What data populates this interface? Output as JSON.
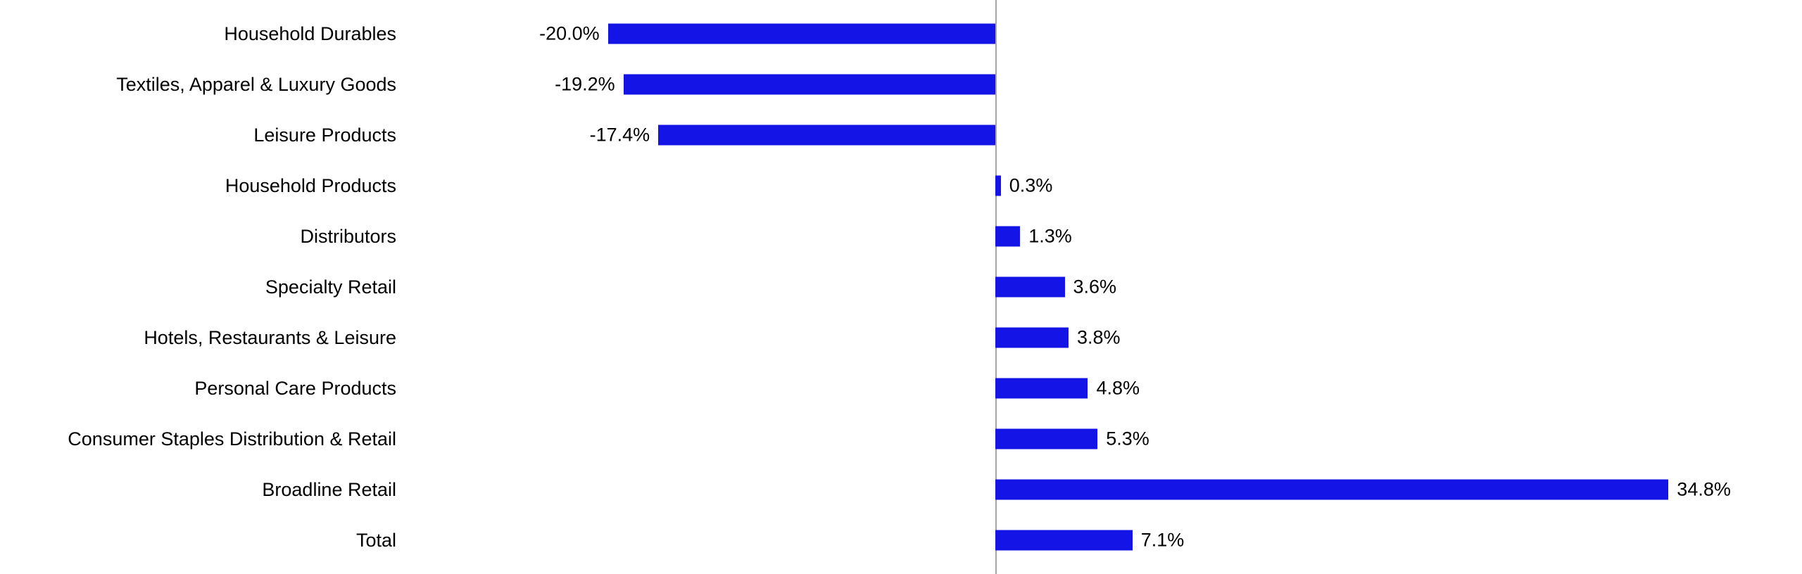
{
  "chart_data": {
    "type": "bar",
    "orientation": "horizontal",
    "title": "",
    "xlabel": "",
    "ylabel": "",
    "grid": false,
    "legend": false,
    "bar_color": "#1414E6",
    "axis_color": "#A6A6A6",
    "xlim": [
      -30.5,
      41.7
    ],
    "categories": [
      "Household Durables",
      "Textiles, Apparel & Luxury Goods",
      "Leisure Products",
      "Household Products",
      "Distributors",
      "Specialty Retail",
      "Hotels, Restaurants & Leisure",
      "Personal Care Products",
      "Consumer Staples Distribution & Retail",
      "Broadline Retail",
      "Total"
    ],
    "values": [
      -20.0,
      -19.2,
      -17.4,
      0.3,
      1.3,
      3.6,
      3.8,
      4.8,
      5.3,
      34.8,
      7.1
    ],
    "value_labels": [
      "-20.0%",
      "-19.2%",
      "-17.4%",
      "0.3%",
      "1.3%",
      "3.6%",
      "3.8%",
      "4.8%",
      "5.3%",
      "34.8%",
      "7.1%"
    ]
  }
}
